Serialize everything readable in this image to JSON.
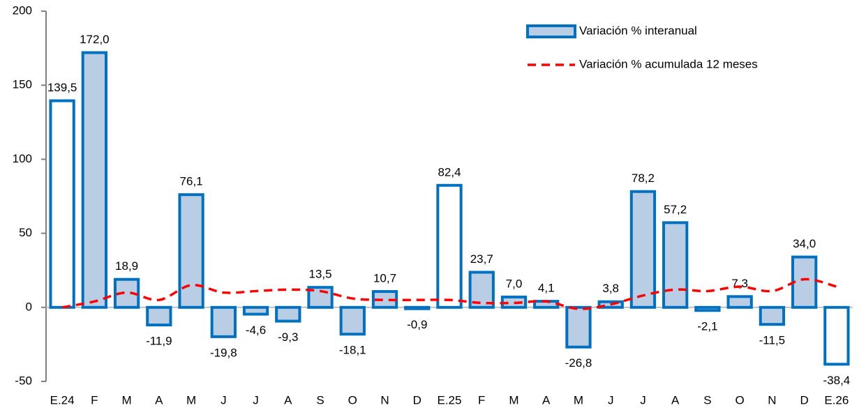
{
  "chart_data": {
    "type": "combo",
    "categories": [
      "E.24",
      "F",
      "M",
      "A",
      "M",
      "J",
      "J",
      "A",
      "S",
      "O",
      "N",
      "D",
      "E.25",
      "F",
      "M",
      "A",
      "M",
      "J",
      "J",
      "A",
      "S",
      "O",
      "N",
      "D",
      "E.26"
    ],
    "series": [
      {
        "name": "Variación % interanual",
        "type": "bar",
        "color": "#0070c0",
        "fill_colors": [
          "#ffffff",
          "#b9cde5",
          "#b9cde5",
          "#b9cde5",
          "#b9cde5",
          "#b9cde5",
          "#b9cde5",
          "#b9cde5",
          "#b9cde5",
          "#b9cde5",
          "#b9cde5",
          "#b9cde5",
          "#ffffff",
          "#b9cde5",
          "#b9cde5",
          "#b9cde5",
          "#b9cde5",
          "#b9cde5",
          "#b9cde5",
          "#b9cde5",
          "#b9cde5",
          "#b9cde5",
          "#b9cde5",
          "#b9cde5",
          "#ffffff"
        ],
        "values": [
          139.5,
          172.0,
          18.9,
          -11.9,
          76.1,
          -19.8,
          -4.6,
          -9.3,
          13.5,
          -18.1,
          10.7,
          -0.9,
          82.4,
          23.7,
          7.0,
          4.1,
          -26.8,
          3.8,
          78.2,
          57.2,
          -2.1,
          7.3,
          -11.5,
          34.0,
          -38.4
        ],
        "value_labels": [
          "139,5",
          "172,0",
          "18,9",
          "-11,9",
          "76,1",
          "-19,8",
          "-4,6",
          "-9,3",
          "13,5",
          "-18,1",
          "10,7",
          "-0,9",
          "82,4",
          "23,7",
          "7,0",
          "4,1",
          "-26,8",
          "3,8",
          "78,2",
          "57,2",
          "-2,1",
          "7,3",
          "-11,5",
          "34,0",
          "-38,4"
        ]
      },
      {
        "name": "Variación % acumulada 12 meses",
        "type": "line",
        "color": "#ff0000",
        "values": [
          0,
          4,
          10,
          5,
          15,
          10,
          11,
          12,
          11,
          6,
          5,
          5,
          5,
          3,
          3,
          4,
          -1,
          2,
          8,
          12,
          11,
          14,
          11,
          19,
          14
        ]
      }
    ],
    "ylim": [
      -50,
      200
    ],
    "yticks": [
      -50,
      0,
      50,
      100,
      150,
      200
    ],
    "grid": false
  }
}
